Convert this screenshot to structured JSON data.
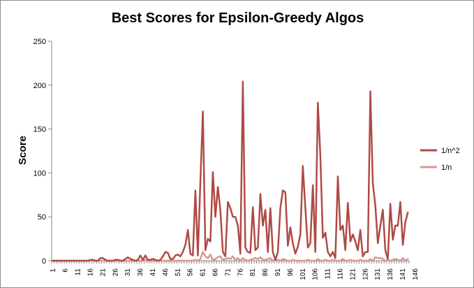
{
  "chart_data": {
    "type": "line",
    "title": "Best Scores for Epsilon-Greedy Algos",
    "xlabel": "",
    "ylabel": "Score",
    "ylim": [
      0,
      250
    ],
    "yticks": [
      0,
      50,
      100,
      150,
      200,
      250
    ],
    "x_tick_labels": [
      "1",
      "6",
      "11",
      "16",
      "21",
      "26",
      "31",
      "36",
      "41",
      "46",
      "51",
      "56",
      "61",
      "66",
      "71",
      "76",
      "81",
      "86",
      "91",
      "96",
      "101",
      "106",
      "111",
      "116",
      "121",
      "126",
      "131",
      "136",
      "141",
      "146"
    ],
    "grid": false,
    "legend_position": "right",
    "colors": {
      "series_1": "#b04a45",
      "series_2": "#d79894"
    },
    "series": [
      {
        "name": "1/n^2",
        "values": [
          0,
          0,
          0,
          0,
          0,
          0,
          0,
          0,
          0,
          0,
          0,
          0,
          0,
          0,
          0,
          1,
          1,
          0,
          0,
          3,
          3,
          1,
          0,
          0,
          0,
          1,
          1,
          0,
          0,
          2,
          4,
          2,
          1,
          0,
          1,
          6,
          1,
          6,
          1,
          1,
          2,
          1,
          0,
          1,
          5,
          10,
          9,
          2,
          2,
          6,
          7,
          5,
          10,
          18,
          35,
          8,
          6,
          80,
          6,
          90,
          170,
          12,
          25,
          22,
          101,
          50,
          84,
          57,
          10,
          5,
          67,
          60,
          50,
          50,
          40,
          8,
          204,
          15,
          10,
          9,
          61,
          12,
          15,
          76,
          40,
          58,
          10,
          60,
          10,
          1,
          10,
          60,
          80,
          78,
          17,
          38,
          20,
          8,
          16,
          30,
          108,
          60,
          15,
          20,
          86,
          10,
          180,
          120,
          26,
          32,
          10,
          5,
          10,
          3,
          96,
          35,
          40,
          12,
          66,
          22,
          30,
          22,
          12,
          35,
          5,
          10,
          10,
          193,
          88,
          63,
          20,
          40,
          58,
          12,
          2,
          65,
          24,
          40,
          40,
          67,
          18,
          44,
          55
        ],
        "label_position": "legend"
      },
      {
        "name": "1/n",
        "values": [
          0,
          0,
          0,
          0,
          0,
          0,
          0,
          0,
          0,
          0,
          0,
          0,
          0,
          0,
          0,
          0,
          0,
          0,
          0,
          0,
          0,
          0,
          0,
          0,
          0,
          0,
          0,
          0,
          0,
          0,
          0,
          0,
          0,
          0,
          0,
          0,
          0,
          1,
          0,
          0,
          0,
          0,
          0,
          0,
          0,
          0,
          0,
          0,
          0,
          0,
          0,
          0,
          0,
          0,
          0,
          0,
          0,
          1,
          0,
          2,
          10,
          5,
          3,
          7,
          1,
          2,
          4,
          5,
          1,
          2,
          3,
          2,
          5,
          1,
          3,
          0,
          3,
          1,
          0,
          1,
          2,
          3,
          2,
          4,
          1,
          1,
          2,
          3,
          0,
          1,
          1,
          0,
          2,
          1,
          0,
          0,
          1,
          0,
          0,
          0,
          0,
          0,
          1,
          0,
          0,
          0,
          2,
          0,
          0,
          1,
          0,
          0,
          1,
          0,
          0,
          0,
          2,
          0,
          0,
          1,
          0,
          0,
          0,
          1,
          0,
          0,
          0,
          2,
          0,
          4,
          3,
          3,
          2,
          0,
          1,
          0,
          1,
          2,
          1,
          0,
          3,
          0,
          2
        ]
      }
    ]
  }
}
